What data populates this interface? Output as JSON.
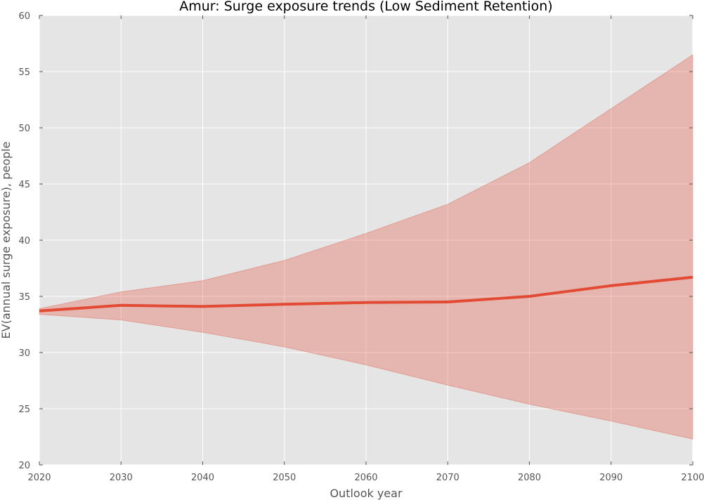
{
  "chart_data": {
    "type": "line",
    "title": "Amur: Surge exposure trends (Low Sediment Retention)",
    "xlabel": "Outlook year",
    "ylabel": "EV(annual surge exposure), people",
    "xlim": [
      2020,
      2100
    ],
    "ylim": [
      20,
      60
    ],
    "x_ticks": [
      "2020",
      "2030",
      "2040",
      "2050",
      "2060",
      "2070",
      "2080",
      "2090",
      "2100"
    ],
    "y_ticks": [
      "20",
      "25",
      "30",
      "35",
      "40",
      "45",
      "50",
      "55",
      "60"
    ],
    "grid": true,
    "x": [
      2020,
      2030,
      2040,
      2050,
      2060,
      2070,
      2080,
      2090,
      2100
    ],
    "series": [
      {
        "values": [
          33.7,
          34.2,
          34.1,
          34.3,
          34.45,
          34.5,
          35.0,
          35.95,
          36.7
        ],
        "lower": [
          33.4,
          32.9,
          31.8,
          30.5,
          28.9,
          27.1,
          25.4,
          23.9,
          22.3
        ],
        "upper": [
          33.9,
          35.4,
          36.4,
          38.2,
          40.6,
          43.2,
          46.9,
          51.7,
          56.5
        ],
        "color": "#e24a33",
        "band_color": "#e24a33"
      }
    ],
    "colors": {
      "plot_background": "#e5e5e5",
      "grid": "#ffffff",
      "line": "#e24a33",
      "band": "#e24a33"
    }
  }
}
